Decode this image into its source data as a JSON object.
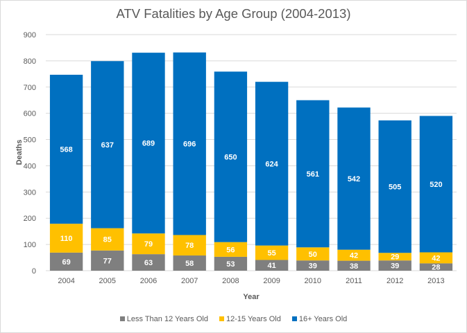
{
  "chart_data": {
    "type": "bar",
    "stacked": true,
    "title": "ATV Fatalities by Age Group (2004-2013)",
    "xlabel": "Year",
    "ylabel": "Deaths",
    "ylim": [
      0,
      900
    ],
    "yticks": [
      0,
      100,
      200,
      300,
      400,
      500,
      600,
      700,
      800,
      900
    ],
    "grid": true,
    "legend_position": "bottom",
    "categories": [
      "2004",
      "2005",
      "2006",
      "2007",
      "2008",
      "2009",
      "2010",
      "2011",
      "2012",
      "2013"
    ],
    "series": [
      {
        "name": "Less Than 12 Years Old",
        "color": "#7f7f7f",
        "values": [
          69,
          77,
          63,
          58,
          53,
          41,
          39,
          38,
          39,
          28
        ]
      },
      {
        "name": "12-15 Years Old",
        "color": "#ffc000",
        "values": [
          110,
          85,
          79,
          78,
          56,
          55,
          50,
          42,
          29,
          42
        ]
      },
      {
        "name": "16+ Years Old",
        "color": "#0070c0",
        "values": [
          568,
          637,
          689,
          696,
          650,
          624,
          561,
          542,
          505,
          520
        ]
      }
    ]
  }
}
